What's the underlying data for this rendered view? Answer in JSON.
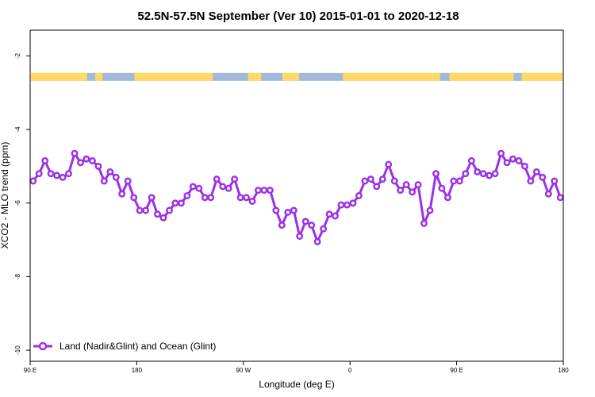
{
  "chart_data": {
    "type": "line",
    "title": "52.5N-57.5N September (Ver 10)   2015-01-01 to 2020-12-18",
    "xlabel": "Longitude (deg E)",
    "ylabel": "XCO2 - MLO trend (ppm)",
    "xlim": [
      90,
      540
    ],
    "ylim": [
      -10.3,
      -1.3
    ],
    "x_ticks": [
      {
        "value": 90,
        "label": "90 E"
      },
      {
        "value": 180,
        "label": "180"
      },
      {
        "value": 270,
        "label": "90 W"
      },
      {
        "value": 360,
        "label": "0"
      },
      {
        "value": 450,
        "label": "90 E"
      },
      {
        "value": 540,
        "label": "180"
      }
    ],
    "y_ticks": [
      {
        "value": -2,
        "label": "-2"
      },
      {
        "value": -4,
        "label": "-4"
      },
      {
        "value": -6,
        "label": "-6"
      },
      {
        "value": -8,
        "label": "-8"
      },
      {
        "value": -10,
        "label": "-10"
      }
    ],
    "legend_position": "bottom-left",
    "grid": false,
    "surface_strip": {
      "y_value": -2.57,
      "land_color": "#ffd966",
      "ocean_color": "#a4b8d9",
      "land_ranges": [
        [
          90,
          138
        ],
        [
          145,
          151
        ],
        [
          178,
          244
        ],
        [
          274,
          285
        ],
        [
          303,
          317
        ],
        [
          354,
          436
        ],
        [
          444,
          498
        ],
        [
          505,
          540
        ]
      ]
    },
    "series": [
      {
        "name": "Land (Nadir&Glint) and Ocean (Glint)",
        "color": "#9b30e8",
        "x": [
          92.5,
          97.5,
          102.5,
          107.5,
          112.5,
          117.5,
          122.5,
          127.5,
          132.5,
          137.5,
          142.5,
          147.5,
          152.5,
          157.5,
          162.5,
          167.5,
          172.5,
          177.5,
          182.5,
          187.5,
          192.5,
          197.5,
          202.5,
          207.5,
          212.5,
          217.5,
          222.5,
          227.5,
          232.5,
          237.5,
          242.5,
          247.5,
          252.5,
          257.5,
          262.5,
          267.5,
          272.5,
          277.5,
          282.5,
          287.5,
          292.5,
          297.5,
          302.5,
          307.5,
          312.5,
          317.5,
          322.5,
          327.5,
          332.5,
          337.5,
          342.5,
          347.5,
          352.5,
          357.5,
          362.5,
          367.5,
          372.5,
          377.5,
          382.5,
          387.5,
          392.5,
          397.5,
          402.5,
          407.5,
          412.5,
          417.5,
          422.5,
          427.5,
          432.5,
          437.5,
          442.5,
          447.5,
          452.5,
          457.5,
          462.5,
          467.5,
          472.5,
          477.5,
          482.5,
          487.5,
          492.5,
          497.5,
          502.5,
          507.5,
          512.5,
          517.5,
          522.5,
          527.5,
          532.5,
          537.5
        ],
        "y": [
          -5.4,
          -5.2,
          -4.85,
          -5.2,
          -5.25,
          -5.3,
          -5.2,
          -4.65,
          -4.9,
          -4.8,
          -4.85,
          -5.0,
          -5.4,
          -5.15,
          -5.3,
          -5.75,
          -5.4,
          -5.85,
          -6.2,
          -6.2,
          -5.85,
          -6.3,
          -6.4,
          -6.2,
          -6.0,
          -6.0,
          -5.8,
          -5.55,
          -5.6,
          -5.85,
          -5.85,
          -5.35,
          -5.55,
          -5.6,
          -5.35,
          -5.85,
          -5.85,
          -5.95,
          -5.65,
          -5.65,
          -5.65,
          -6.2,
          -6.6,
          -6.25,
          -6.2,
          -6.9,
          -6.5,
          -6.6,
          -7.05,
          -6.7,
          -6.3,
          -6.35,
          -6.05,
          -6.05,
          -6.0,
          -5.8,
          -5.4,
          -5.35,
          -5.55,
          -5.35,
          -4.95,
          -5.4,
          -5.65,
          -5.5,
          -5.7,
          -5.5,
          -6.55,
          -6.2,
          -5.2,
          -5.6,
          -5.85,
          -5.4,
          -5.4,
          -5.2,
          -4.85,
          -5.15,
          -5.2,
          -5.25,
          -5.2,
          -4.65,
          -4.9,
          -4.8,
          -4.85,
          -5.0,
          -5.4,
          -5.15,
          -5.3,
          -5.75,
          -5.4,
          -5.85
        ]
      }
    ]
  }
}
